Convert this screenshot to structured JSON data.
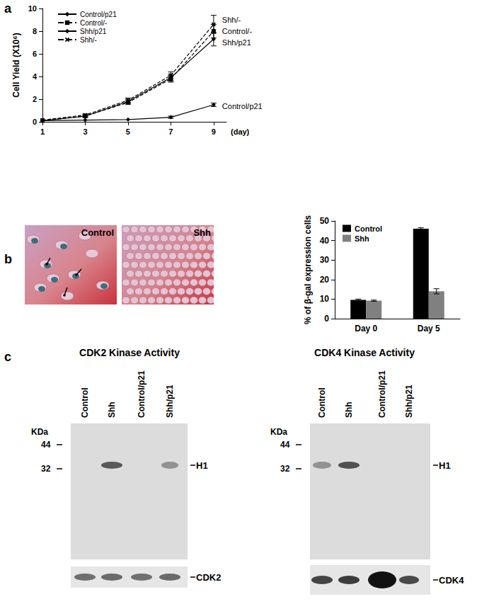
{
  "panel_labels": [
    "a",
    "b",
    "c"
  ],
  "chart_data": [
    {
      "type": "line",
      "x_label": "(day)",
      "y_label": "Cell Yield (X10⁶)",
      "x": [
        1,
        3,
        5,
        7,
        9
      ],
      "xlim": [
        1,
        9.6
      ],
      "xticks": [
        1,
        3,
        5,
        7,
        9
      ],
      "ylim": [
        0,
        10
      ],
      "yticks": [
        0,
        2,
        4,
        6,
        8,
        10
      ],
      "grid": false,
      "legend": "upper left",
      "series": [
        {
          "name": "Control/p21",
          "color": "#000000",
          "line_style": "solid",
          "marker": "diamond",
          "values": [
            0.1,
            0.15,
            0.2,
            0.4,
            1.5
          ],
          "errors": [
            0,
            0,
            0,
            0.1,
            0.15
          ]
        },
        {
          "name": "Control/-",
          "color": "#000000",
          "line_style": "dashed",
          "marker": "square",
          "values": [
            0.1,
            0.5,
            1.7,
            3.8,
            8.0
          ],
          "errors": [
            0,
            0.1,
            0.15,
            0.3,
            0.6
          ]
        },
        {
          "name": "Shh/p21",
          "color": "#000000",
          "line_style": "solid",
          "marker": "diamond",
          "values": [
            0.1,
            0.5,
            1.8,
            3.9,
            7.3
          ],
          "errors": [
            0,
            0.1,
            0.15,
            0.3,
            0.6
          ]
        },
        {
          "name": "Shh/-",
          "color": "#000000",
          "line_style": "dashed",
          "marker": "x",
          "values": [
            0.15,
            0.6,
            1.9,
            4.1,
            8.6
          ],
          "errors": [
            0,
            0.1,
            0.2,
            0.3,
            0.8
          ]
        }
      ]
    },
    {
      "type": "bar",
      "y_label": "% of β-gal expression cells",
      "categories": [
        "Day 0",
        "Day 5"
      ],
      "ylim": [
        0,
        50
      ],
      "yticks": [
        0,
        10,
        20,
        30,
        40,
        50
      ],
      "grid": false,
      "legend": "upper left",
      "series": [
        {
          "name": "Control",
          "color": "#000000",
          "values": [
            9.6,
            46
          ],
          "errors": [
            0.4,
            0.5
          ]
        },
        {
          "name": "Shh",
          "color": "#808080",
          "values": [
            9.2,
            14
          ],
          "errors": [
            0.3,
            1.3
          ]
        }
      ]
    }
  ],
  "images": [
    {
      "label": "Control"
    },
    {
      "label": "Shh"
    }
  ],
  "blots": [
    {
      "title": "CDK2 Kinase Activity",
      "lanes": [
        "Control",
        "Shh",
        "Control/p21",
        "Shh/p21"
      ],
      "unit": "KDa",
      "markers": [
        44,
        32
      ],
      "band_label": "H1",
      "loading_label": "CDK2"
    },
    {
      "title": "CDK4 Kinase Activity",
      "lanes": [
        "Control",
        "Shh",
        "Control/p21",
        "Shh/p21"
      ],
      "unit": "KDa",
      "markers": [
        44,
        32
      ],
      "band_label": "H1",
      "loading_label": "CDK4"
    }
  ]
}
